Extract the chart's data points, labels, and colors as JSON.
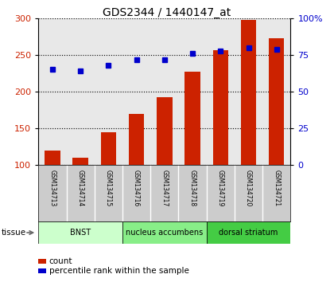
{
  "title": "GDS2344 / 1440147_at",
  "samples": [
    "GSM134713",
    "GSM134714",
    "GSM134715",
    "GSM134716",
    "GSM134717",
    "GSM134718",
    "GSM134719",
    "GSM134720",
    "GSM134721"
  ],
  "counts": [
    120,
    110,
    145,
    170,
    192,
    227,
    257,
    298,
    273
  ],
  "percentile": [
    65,
    64,
    68,
    72,
    72,
    76,
    78,
    80,
    79
  ],
  "bar_color": "#cc2200",
  "dot_color": "#0000cc",
  "ylim_left": [
    100,
    300
  ],
  "ylim_right": [
    0,
    100
  ],
  "yticks_left": [
    100,
    150,
    200,
    250,
    300
  ],
  "yticks_right": [
    0,
    25,
    50,
    75,
    100
  ],
  "ytick_labels_right": [
    "0",
    "25",
    "50",
    "75",
    "100%"
  ],
  "groups": [
    {
      "label": "BNST",
      "start": 0,
      "end": 3,
      "color": "#ccffcc"
    },
    {
      "label": "nucleus accumbens",
      "start": 3,
      "end": 6,
      "color": "#88ee88"
    },
    {
      "label": "dorsal striatum",
      "start": 6,
      "end": 9,
      "color": "#44cc44"
    }
  ],
  "tissue_label": "tissue",
  "legend_count": "count",
  "legend_pct": "percentile rank within the sample",
  "plot_bg": "#e8e8e8",
  "sample_bg": "#cccccc",
  "bar_bottom": 100
}
